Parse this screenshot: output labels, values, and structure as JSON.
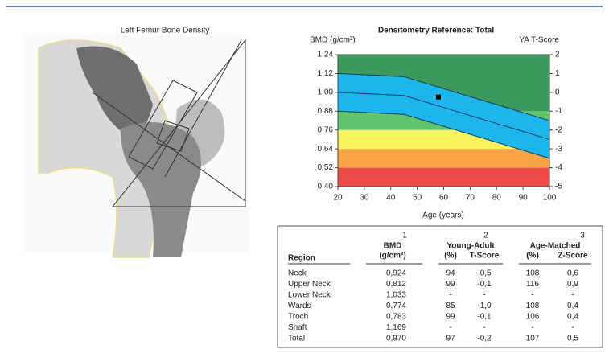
{
  "image": {
    "title": "Left Femur Bone Density"
  },
  "chart_data": {
    "type": "band",
    "title": "Densitometry Reference: Total",
    "ylabel": "BMD (g/cm²)",
    "y2label": "YA T-Score",
    "xlabel": "Age (years)",
    "xlim": [
      20,
      100
    ],
    "xticks": [
      20,
      30,
      40,
      50,
      60,
      70,
      80,
      90,
      100
    ],
    "ylim": [
      0.4,
      1.24
    ],
    "yticks": [
      {
        "value": 0.4,
        "label": "0,40"
      },
      {
        "value": 0.52,
        "label": "0,52"
      },
      {
        "value": 0.64,
        "label": "0,64"
      },
      {
        "value": 0.76,
        "label": "0,76"
      },
      {
        "value": 0.88,
        "label": "0,88"
      },
      {
        "value": 1.0,
        "label": "1,00"
      },
      {
        "value": 1.12,
        "label": "1,12"
      },
      {
        "value": 1.24,
        "label": "1,24"
      }
    ],
    "y2lim": [
      -5,
      2
    ],
    "y2ticks": [
      -5,
      -4,
      -3,
      -2,
      -1,
      0,
      1,
      2
    ],
    "bands": [
      {
        "from": -5,
        "to": -4,
        "color": "#ee4b4b"
      },
      {
        "from": -4,
        "to": -3,
        "color": "#f6a444"
      },
      {
        "from": -3,
        "to": -2,
        "color": "#f6f35e"
      },
      {
        "from": -2,
        "to": -1,
        "color": "#5fc46c"
      },
      {
        "from": -1,
        "to": 2,
        "color": "#3d9a5e"
      }
    ],
    "reference": {
      "x": [
        20,
        45,
        100
      ],
      "upper": [
        1.12,
        1.1,
        0.82
      ],
      "mean": [
        1.0,
        0.98,
        0.7
      ],
      "lower": [
        0.88,
        0.86,
        0.58
      ],
      "color": "#1db6ec"
    },
    "patient": {
      "x": 58,
      "y": 0.97,
      "color": "#000000"
    }
  },
  "table": {
    "header": {
      "region": "Region",
      "bmd": "BMD",
      "bmd_note": "1",
      "bmd_unit": "(g/cm²)",
      "ya": "Young-Adult",
      "ya_note": "2",
      "ya_pct": "(%)",
      "ya_t": "T-Score",
      "am": "Age-Matched",
      "am_note": "3",
      "am_pct": "(%)",
      "am_z": "Z-Score"
    },
    "rows": [
      [
        "Neck",
        "0,924",
        "94",
        "-0,5",
        "108",
        "0,6"
      ],
      [
        "Upper Neck",
        "0,812",
        "99",
        "-0,1",
        "116",
        "0,9"
      ],
      [
        "Lower Neck",
        "1,033",
        "-",
        "-",
        "-",
        "-"
      ],
      [
        "Wards",
        "0,774",
        "85",
        "-1,0",
        "108",
        "0,4"
      ],
      [
        "Troch",
        "0,783",
        "99",
        "-0,1",
        "106",
        "0,4"
      ],
      [
        "Shaft",
        "1,169",
        "-",
        "-",
        "-",
        "-"
      ],
      [
        "Total",
        "0,970",
        "97",
        "-0,2",
        "107",
        "0,5"
      ]
    ]
  }
}
